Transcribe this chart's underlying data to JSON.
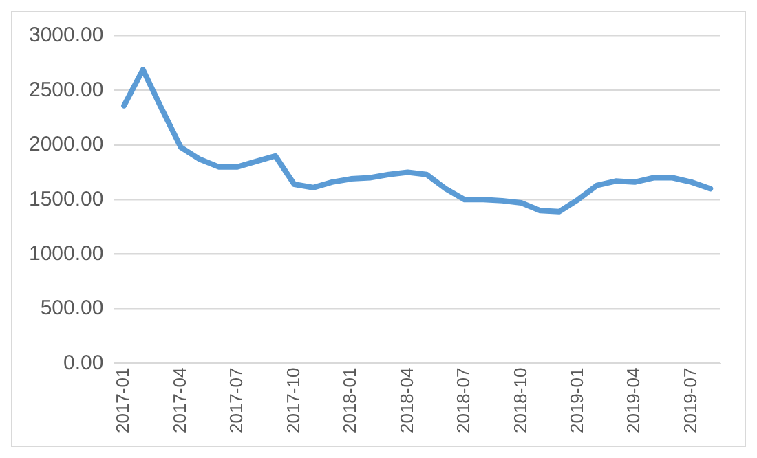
{
  "chart_data": {
    "type": "line",
    "categories": [
      "2017-01",
      null,
      null,
      "2017-04",
      null,
      null,
      "2017-07",
      null,
      null,
      "2017-10",
      null,
      null,
      "2018-01",
      null,
      null,
      "2018-04",
      null,
      null,
      "2018-07",
      null,
      null,
      "2018-10",
      null,
      null,
      "2019-01",
      null,
      null,
      "2019-04",
      null,
      null,
      "2019-07",
      null
    ],
    "series": [
      {
        "color": "#5b9bd5",
        "values": [
          2360,
          2690,
          2330,
          1980,
          1870,
          1800,
          1800,
          1850,
          1900,
          1640,
          1610,
          1660,
          1690,
          1700,
          1730,
          1750,
          1730,
          1600,
          1500,
          1500,
          1490,
          1470,
          1400,
          1390,
          1500,
          1630,
          1670,
          1660,
          1700,
          1700,
          1660,
          1600
        ]
      }
    ],
    "ylim": [
      0,
      3000
    ],
    "yticks": [
      {
        "value": 0,
        "label": "0.00"
      },
      {
        "value": 500,
        "label": "500.00"
      },
      {
        "value": 1000,
        "label": "1000.00"
      },
      {
        "value": 1500,
        "label": "1500.00"
      },
      {
        "value": 2000,
        "label": "2000.00"
      },
      {
        "value": 2500,
        "label": "2500.00"
      },
      {
        "value": 3000,
        "label": "3000.00"
      }
    ],
    "grid": "y",
    "legend": false,
    "marker": "none",
    "line_style": "solid"
  }
}
